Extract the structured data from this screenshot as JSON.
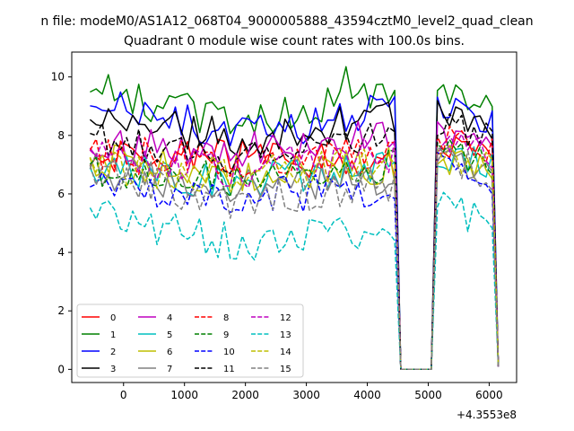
{
  "figure": {
    "suptitle": "n file: modeM0/AS1A12_068T04_9000005888_43594cztM0_level2_quad_clean",
    "title": "Quadrant 0 module wise count rates with 100.0s bins.",
    "offset_label": "+4.3553e8"
  },
  "chart_data": {
    "type": "line",
    "title": "Quadrant 0 module wise count rates with 100.0s bins.",
    "xlabel": "",
    "ylabel": "",
    "x_offset": 435530000,
    "xlim": [
      -850,
      6450
    ],
    "ylim": [
      -0.45,
      10.85
    ],
    "grid": false,
    "legend_position": "lower-left",
    "xticks": [
      0,
      1000,
      2000,
      3000,
      4000,
      5000,
      6000
    ],
    "yticks": [
      0,
      2,
      4,
      6,
      8,
      10
    ],
    "xtick_labels": [
      "0",
      "1000",
      "2000",
      "3000",
      "4000",
      "5000",
      "6000"
    ],
    "ytick_labels": [
      "0",
      "2",
      "4",
      "6",
      "8",
      "10"
    ],
    "segments": [
      {
        "x_start": -550,
        "x_end": 4500,
        "step": 100
      },
      {
        "x_start": 4550,
        "x_end": 5050,
        "step": 100
      },
      {
        "x_start": 5150,
        "x_end": 6050,
        "step": 100
      },
      {
        "x_start": 6150,
        "x_end": 6150,
        "step": 100
      }
    ],
    "series": [
      {
        "name": "0",
        "color": "#ff0000",
        "dash": "solid",
        "levels": [
          7.1,
          7.3,
          6.9,
          0.0,
          7.6,
          7.4,
          0.1
        ]
      },
      {
        "name": "1",
        "color": "#008000",
        "dash": "solid",
        "levels": [
          9.6,
          8.4,
          9.5,
          0.0,
          9.6,
          8.8,
          0.1
        ]
      },
      {
        "name": "2",
        "color": "#0000ff",
        "dash": "solid",
        "levels": [
          9.1,
          8.0,
          8.9,
          0.0,
          9.2,
          8.3,
          0.1
        ]
      },
      {
        "name": "3",
        "color": "#000000",
        "dash": "solid",
        "levels": [
          8.6,
          7.9,
          8.6,
          0.0,
          8.9,
          8.1,
          0.1
        ]
      },
      {
        "name": "4",
        "color": "#bf00bf",
        "dash": "solid",
        "levels": [
          7.6,
          7.6,
          7.9,
          0.0,
          8.0,
          7.5,
          0.1
        ]
      },
      {
        "name": "5",
        "color": "#00bfbf",
        "dash": "solid",
        "levels": [
          6.9,
          6.4,
          6.8,
          0.0,
          7.4,
          6.9,
          0.1
        ]
      },
      {
        "name": "6",
        "color": "#bfbf00",
        "dash": "solid",
        "levels": [
          7.2,
          6.7,
          7.0,
          0.0,
          7.3,
          6.8,
          0.1
        ]
      },
      {
        "name": "7",
        "color": "#808080",
        "dash": "solid",
        "levels": [
          6.8,
          6.2,
          6.6,
          0.0,
          7.2,
          6.7,
          0.1
        ]
      },
      {
        "name": "8",
        "color": "#ff0000",
        "dash": "dashed",
        "levels": [
          7.4,
          7.1,
          7.6,
          0.0,
          7.9,
          7.5,
          0.1
        ]
      },
      {
        "name": "9",
        "color": "#008000",
        "dash": "dashed",
        "levels": [
          6.9,
          6.4,
          6.9,
          0.0,
          7.5,
          7.0,
          0.1
        ]
      },
      {
        "name": "10",
        "color": "#0000ff",
        "dash": "dashed",
        "levels": [
          6.1,
          5.9,
          6.2,
          0.0,
          7.0,
          6.0,
          0.1
        ]
      },
      {
        "name": "11",
        "color": "#000000",
        "dash": "dashed",
        "levels": [
          7.9,
          7.2,
          8.1,
          0.0,
          8.5,
          7.8,
          0.1
        ]
      },
      {
        "name": "12",
        "color": "#bf00bf",
        "dash": "dashed",
        "levels": [
          7.3,
          6.8,
          7.4,
          0.0,
          7.7,
          7.3,
          0.1
        ]
      },
      {
        "name": "13",
        "color": "#00bfbf",
        "dash": "dashed",
        "levels": [
          5.3,
          4.3,
          4.9,
          0.0,
          5.7,
          4.9,
          0.1
        ]
      },
      {
        "name": "14",
        "color": "#bfbf00",
        "dash": "dashed",
        "levels": [
          7.0,
          6.6,
          7.1,
          0.0,
          7.5,
          6.9,
          0.1
        ]
      },
      {
        "name": "15",
        "color": "#808080",
        "dash": "dashed",
        "levels": [
          6.7,
          5.7,
          6.4,
          0.0,
          7.4,
          6.6,
          0.1
        ]
      }
    ]
  }
}
